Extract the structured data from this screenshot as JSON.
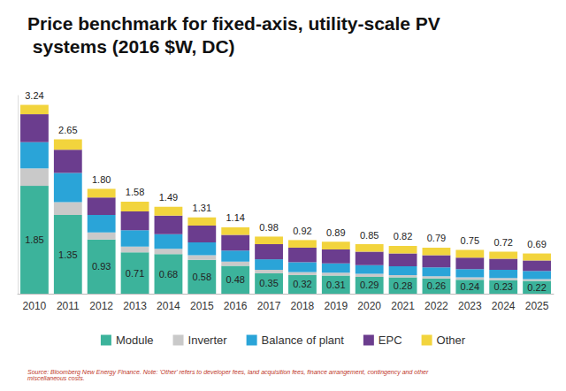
{
  "chart_data": {
    "type": "bar",
    "title": "Price benchmark for fixed-axis, utility-scale PV systems (2016 $W, DC)",
    "note": "Source: Bloomberg New Energy Finance. Note: 'Other' refers to developer fees, land acquisition fees, finance arrangement, contingency and other miscellaneous costs.",
    "categories": [
      "2010",
      "2011",
      "2012",
      "2013",
      "2014",
      "2015",
      "2016",
      "2017",
      "2018",
      "2019",
      "2020",
      "2021",
      "2022",
      "2023",
      "2024",
      "2025"
    ],
    "series": [
      {
        "name": "Module",
        "color": "#3cb39b",
        "data_labels": true,
        "values": [
          1.85,
          1.35,
          0.93,
          0.71,
          0.68,
          0.58,
          0.48,
          0.35,
          0.32,
          0.31,
          0.29,
          0.28,
          0.26,
          0.24,
          0.23,
          0.22
        ]
      },
      {
        "name": "Inverter",
        "color": "#c9c9c9",
        "values": [
          0.3,
          0.22,
          0.12,
          0.1,
          0.09,
          0.08,
          0.07,
          0.06,
          0.05,
          0.05,
          0.05,
          0.04,
          0.04,
          0.04,
          0.04,
          0.03
        ]
      },
      {
        "name": "Balance of plant",
        "color": "#2aa4d8",
        "values": [
          0.45,
          0.5,
          0.3,
          0.28,
          0.25,
          0.22,
          0.19,
          0.18,
          0.17,
          0.16,
          0.15,
          0.15,
          0.15,
          0.14,
          0.14,
          0.14
        ]
      },
      {
        "name": "EPC",
        "color": "#6b3d8e",
        "values": [
          0.48,
          0.4,
          0.3,
          0.32,
          0.32,
          0.29,
          0.27,
          0.26,
          0.25,
          0.24,
          0.23,
          0.22,
          0.21,
          0.2,
          0.19,
          0.18
        ]
      },
      {
        "name": "Other",
        "color": "#f2d43d",
        "values": [
          0.16,
          0.18,
          0.15,
          0.17,
          0.15,
          0.14,
          0.13,
          0.13,
          0.13,
          0.13,
          0.13,
          0.13,
          0.13,
          0.13,
          0.12,
          0.12
        ]
      }
    ],
    "totals": [
      3.24,
      2.65,
      1.8,
      1.58,
      1.49,
      1.31,
      1.14,
      0.98,
      0.92,
      0.89,
      0.85,
      0.82,
      0.79,
      0.75,
      0.72,
      0.69
    ],
    "total_labels": [
      "3.24",
      "2.65",
      "1.80",
      "1.58",
      "1.49",
      "1.31",
      "1.14",
      "0.98",
      "0.92",
      "0.89",
      "0.85",
      "0.82",
      "0.79",
      "0.75",
      "0.72",
      "0.69"
    ],
    "ylim": [
      0,
      3.4
    ],
    "stacked": true,
    "grid": false,
    "legend": "bottom",
    "tick_labels": "x"
  }
}
